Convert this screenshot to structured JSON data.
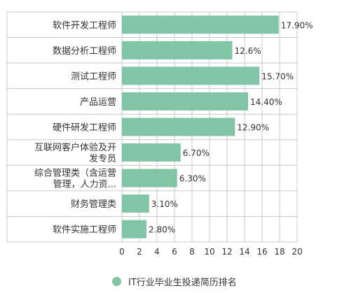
{
  "chart_data": {
    "type": "bar",
    "orientation": "horizontal",
    "categories": [
      [
        "软件开发工程师"
      ],
      [
        "数据分析工程师"
      ],
      [
        "测试工程师"
      ],
      [
        "产品运营"
      ],
      [
        "硬件研发工程师"
      ],
      [
        "互联网客户体验及开",
        "发专员"
      ],
      [
        "综合管理类（含运营",
        "管理，人力资..."
      ],
      [
        "财务管理类"
      ],
      [
        "软件实施工程师"
      ]
    ],
    "values": [
      17.9,
      12.6,
      15.7,
      14.4,
      12.9,
      6.7,
      6.3,
      3.1,
      2.8
    ],
    "value_labels": [
      "17.90%",
      "12.6%",
      "15.70%",
      "14.40%",
      "12.90%",
      "6.70%",
      "6.30%",
      "3.10%",
      "2.80%"
    ],
    "xlim": [
      0,
      20
    ],
    "xticks": [
      "0",
      "2",
      "4",
      "6",
      "8",
      "10",
      "12",
      "14",
      "16",
      "18",
      "20"
    ],
    "grid": true,
    "bar_color": "#82c5a6",
    "legend": {
      "label": "IT行业毕业生投递简历排名",
      "position": "bottom"
    }
  }
}
